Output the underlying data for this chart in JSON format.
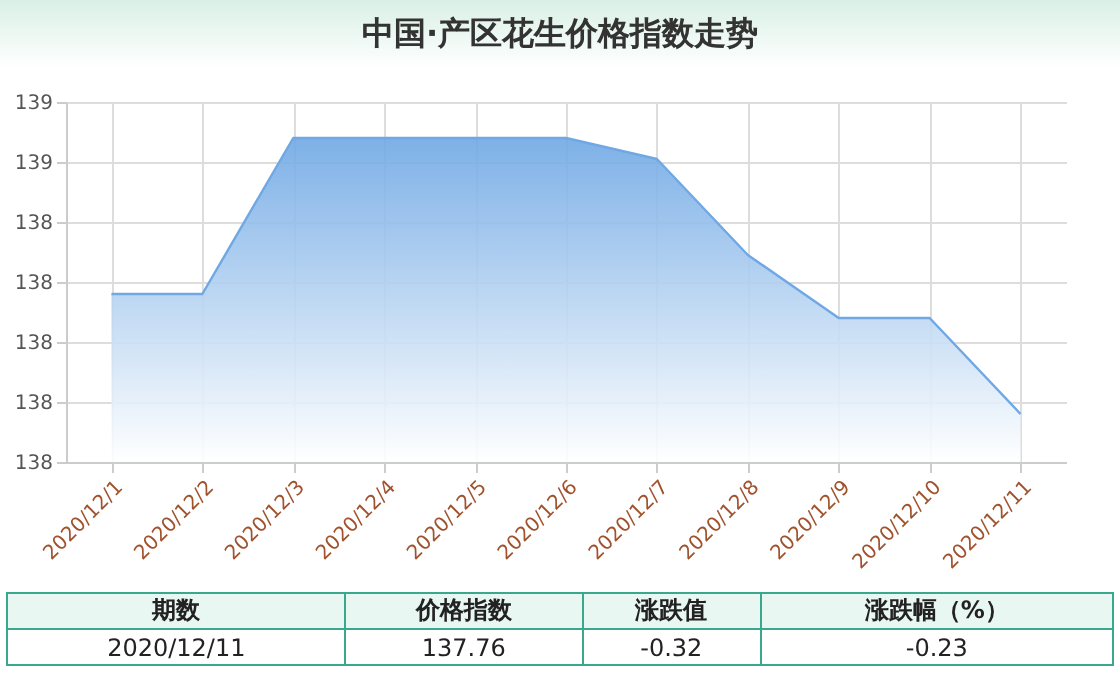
{
  "chart_data": {
    "type": "area",
    "title": "中国·产区花生价格指数走势",
    "categories": [
      "2020/12/1",
      "2020/12/2",
      "2020/12/3",
      "2020/12/4",
      "2020/12/5",
      "2020/12/6",
      "2020/12/7",
      "2020/12/8",
      "2020/12/9",
      "2020/12/10",
      "2020/12/11"
    ],
    "values": [
      138.16,
      138.16,
      138.68,
      138.68,
      138.68,
      138.68,
      138.61,
      138.29,
      138.08,
      138.08,
      137.76
    ],
    "color": "#6fa8e4",
    "ylim": [
      137.6,
      138.8
    ],
    "yticks": [
      {
        "value": 137.6,
        "label": "138"
      },
      {
        "value": 137.8,
        "label": "138"
      },
      {
        "value": 138.0,
        "label": "138"
      },
      {
        "value": 138.2,
        "label": "138"
      },
      {
        "value": 138.4,
        "label": "138"
      },
      {
        "value": 138.6,
        "label": "139"
      },
      {
        "value": 138.8,
        "label": "139"
      }
    ],
    "grid": true,
    "annotations": [
      "期数",
      "价格指数",
      "涨跌值",
      "涨跌幅（%）",
      "2020/12/11",
      "137.76",
      "-0.32",
      "-0.23"
    ]
  }
}
